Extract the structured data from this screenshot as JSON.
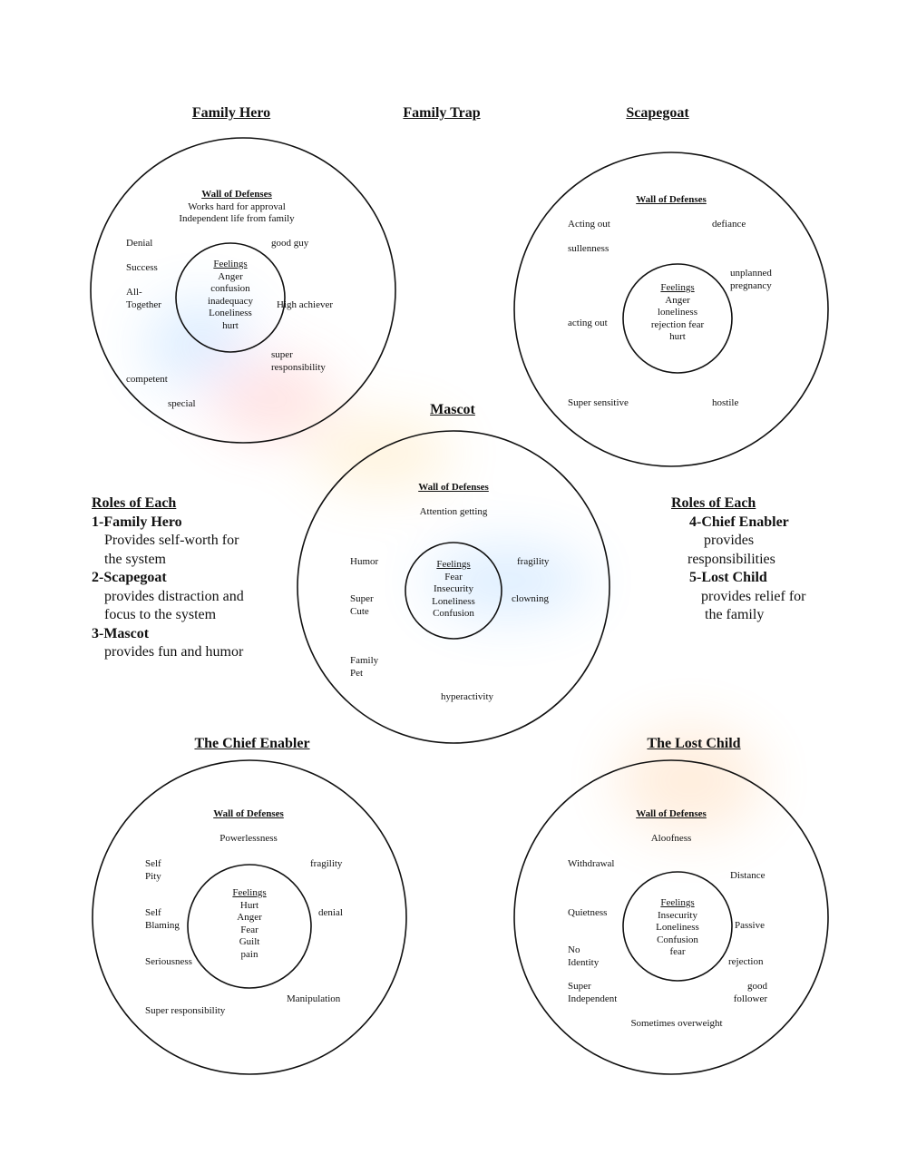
{
  "page_title": "Family Trap",
  "diagrams": [
    {
      "title": "Family Hero",
      "wall_label": "Wall of Defenses",
      "wall_lines": [
        "Works hard for approval",
        "Independent life from family"
      ],
      "defenses": [
        "Denial",
        "Success",
        "All-\nTogether",
        "good guy",
        "High achiever",
        "super\nresponsibility",
        "competent",
        "special"
      ],
      "feelings_label": "Feelings",
      "feelings": [
        "Anger",
        "confusion",
        "inadequacy",
        "Loneliness",
        "hurt"
      ]
    },
    {
      "title": "Scapegoat",
      "wall_label": "Wall of Defenses",
      "wall_lines": [],
      "defenses": [
        "Acting out",
        "defiance",
        "sullenness",
        "unplanned\npregnancy",
        "acting out",
        "Super sensitive",
        "hostile"
      ],
      "feelings_label": "Feelings",
      "feelings": [
        "Anger",
        "loneliness",
        "rejection fear",
        "hurt"
      ]
    },
    {
      "title": "Mascot",
      "wall_label": "Wall of Defenses",
      "wall_lines": [
        "Attention getting"
      ],
      "defenses": [
        "Humor",
        "fragility",
        "Super\nCute",
        "clowning",
        "Family\nPet",
        "hyperactivity"
      ],
      "feelings_label": "Feelings",
      "feelings": [
        "Fear",
        "Insecurity",
        "Loneliness",
        "Confusion"
      ]
    },
    {
      "title": "The Chief Enabler",
      "wall_label": "Wall of Defenses",
      "wall_lines": [
        "Powerlessness"
      ],
      "defenses": [
        "Self\nPity",
        "fragility",
        "Self\nBlaming",
        "denial",
        "Seriousness",
        "Manipulation",
        "Super responsibility"
      ],
      "feelings_label": "Feelings",
      "feelings": [
        "Hurt",
        "Anger",
        "Fear",
        "Guilt",
        "pain"
      ]
    },
    {
      "title": "The Lost Child",
      "wall_label": "Wall of Defenses",
      "wall_lines": [
        "Aloofness"
      ],
      "defenses": [
        "Withdrawal",
        "Distance",
        "Quietness",
        "Passive",
        "No\nIdentity",
        "rejection",
        "Super\nIndependent",
        "good\nfollower",
        "Sometimes overweight"
      ],
      "feelings_label": "Feelings",
      "feelings": [
        "Insecurity",
        "Loneliness",
        "Confusion",
        "fear"
      ]
    }
  ],
  "roles_left": [
    {
      "kind": "heading",
      "text": "Roles of Each"
    },
    {
      "kind": "role-name",
      "text": "1-Family Hero"
    },
    {
      "kind": "desc",
      "text": "Provides self-worth for"
    },
    {
      "kind": "desc",
      "text": "the system"
    },
    {
      "kind": "role-name",
      "text": "2-Scapegoat"
    },
    {
      "kind": "desc",
      "text": "provides distraction and"
    },
    {
      "kind": "desc",
      "text": "focus to the system"
    },
    {
      "kind": "role-name",
      "text": "3-Mascot"
    },
    {
      "kind": "desc",
      "text": "provides fun and humor"
    }
  ],
  "roles_right": [
    {
      "kind": "heading",
      "text": "Roles of Each"
    },
    {
      "kind": "role-name",
      "text": "4-Chief Enabler"
    },
    {
      "kind": "desc",
      "text": "provides"
    },
    {
      "kind": "desc",
      "text": "responsibilities"
    },
    {
      "kind": "role-name",
      "text": "5-Lost Child"
    },
    {
      "kind": "desc",
      "text": "provides relief for"
    },
    {
      "kind": "desc",
      "text": "the family"
    }
  ]
}
